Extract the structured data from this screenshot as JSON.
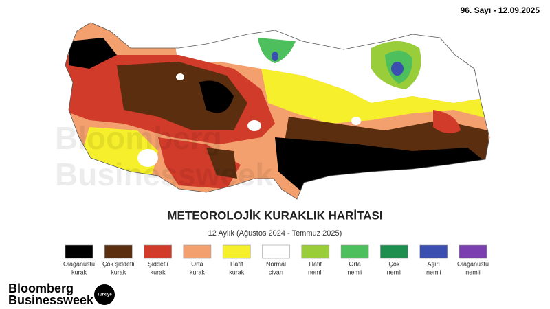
{
  "header": {
    "issue": "96. Sayı - 12.09.2025"
  },
  "watermark": [
    "Bloomberg",
    "Businessweek"
  ],
  "title": "METEOROLOJİK KURAKLIK HARİTASI",
  "subtitle": "12 Aylık (Ağustos 2024 - Temmuz 2025)",
  "legend": [
    {
      "lines": [
        "Olağanüstü",
        "kurak"
      ],
      "color": "#000000"
    },
    {
      "lines": [
        "Çok şiddetli",
        "kurak"
      ],
      "color": "#5b2e10"
    },
    {
      "lines": [
        "Şiddetli",
        "kurak"
      ],
      "color": "#d13b2a"
    },
    {
      "lines": [
        "Orta",
        "kurak"
      ],
      "color": "#f4a06e"
    },
    {
      "lines": [
        "Hafif",
        "kurak"
      ],
      "color": "#f6ef2c"
    },
    {
      "lines": [
        "Normal",
        "civarı"
      ],
      "color": "#ffffff"
    },
    {
      "lines": [
        "Hafif",
        "nemli"
      ],
      "color": "#9acd3a"
    },
    {
      "lines": [
        "Orta",
        "nemli"
      ],
      "color": "#4dbf5c"
    },
    {
      "lines": [
        "Çok",
        "nemli"
      ],
      "color": "#1f8f50"
    },
    {
      "lines": [
        "Aşırı",
        "nemli"
      ],
      "color": "#3a4fb0"
    },
    {
      "lines": [
        "Olağanüstü",
        "nemli"
      ],
      "color": "#7b3fb0"
    }
  ],
  "brand": {
    "name": [
      "Bloomberg",
      "Businessweek"
    ],
    "edition": "Türkiye"
  }
}
